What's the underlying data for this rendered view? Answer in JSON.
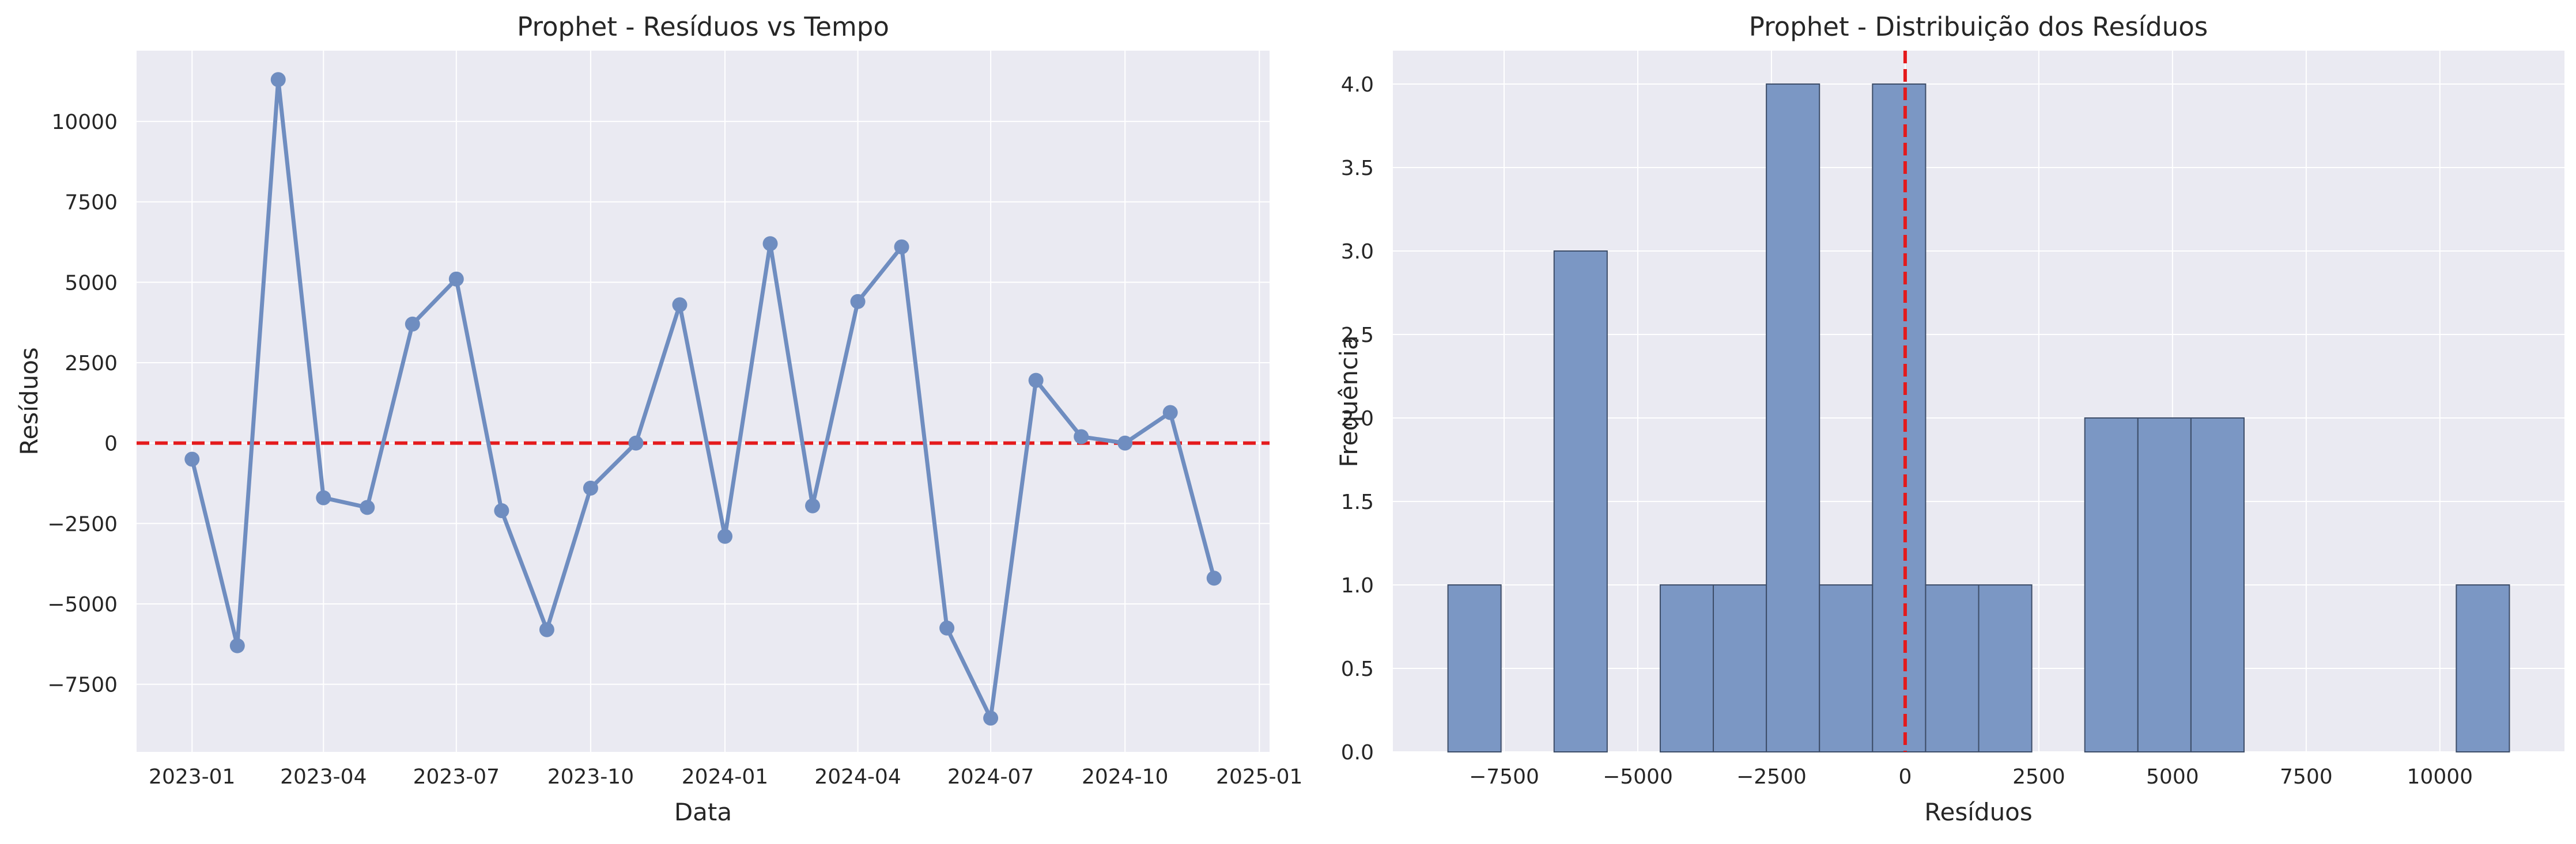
{
  "chart_data": [
    {
      "type": "line",
      "title": "Prophet - Resíduos vs Tempo",
      "xlabel": "Data",
      "ylabel": "Resíduos",
      "x": [
        "2023-01-01",
        "2023-02-01",
        "2023-03-01",
        "2023-04-01",
        "2023-05-01",
        "2023-06-01",
        "2023-07-01",
        "2023-08-01",
        "2023-09-01",
        "2023-10-01",
        "2023-11-01",
        "2023-12-01",
        "2024-01-01",
        "2024-02-01",
        "2024-03-01",
        "2024-04-01",
        "2024-05-01",
        "2024-06-01",
        "2024-07-01",
        "2024-08-01",
        "2024-09-01",
        "2024-10-01",
        "2024-11-01",
        "2024-12-01"
      ],
      "values": [
        -500,
        -6300,
        11300,
        -1700,
        -2000,
        3700,
        5100,
        -2100,
        -5800,
        -1400,
        0,
        4300,
        -2900,
        6200,
        -1950,
        4400,
        6100,
        -5750,
        -8550,
        1950,
        200,
        0,
        950,
        -4200
      ],
      "xticks": [
        "2023-01",
        "2023-04",
        "2023-07",
        "2023-10",
        "2024-01",
        "2024-04",
        "2024-07",
        "2024-10",
        "2025-01"
      ],
      "xlim": [
        "2022-11-24",
        "2025-01-08"
      ],
      "yticks": [
        "−7500",
        "−5000",
        "−2500",
        "0",
        "2500",
        "5000",
        "7500",
        "10000"
      ],
      "ylim": [
        -9600,
        12200
      ],
      "reference_line": {
        "y": 0,
        "style": "dashed",
        "color": "#e41a1c"
      },
      "line_color": "#6f8dc0",
      "grid": true
    },
    {
      "type": "bar",
      "subtype": "histogram",
      "title": "Prophet - Distribuição dos Resíduos",
      "xlabel": "Resíduos",
      "ylabel": "Frequência",
      "bin_start": -8550,
      "bin_width": 992.5,
      "values": [
        1,
        0,
        3,
        0,
        1,
        1,
        4,
        1,
        4,
        1,
        1,
        0,
        2,
        2,
        2,
        0,
        0,
        0,
        0,
        1
      ],
      "xticks": [
        "−7500",
        "−5000",
        "−2500",
        "0",
        "2500",
        "5000",
        "7500",
        "10000"
      ],
      "xlim": [
        -9580,
        12330
      ],
      "yticks": [
        "0.0",
        "0.5",
        "1.0",
        "1.5",
        "2.0",
        "2.5",
        "3.0",
        "3.5",
        "4.0"
      ],
      "ylim": [
        0,
        4.2
      ],
      "reference_line": {
        "x": 0,
        "style": "dashed",
        "color": "#e41a1c"
      },
      "bar_color": "#7b97c4",
      "grid": true
    }
  ]
}
